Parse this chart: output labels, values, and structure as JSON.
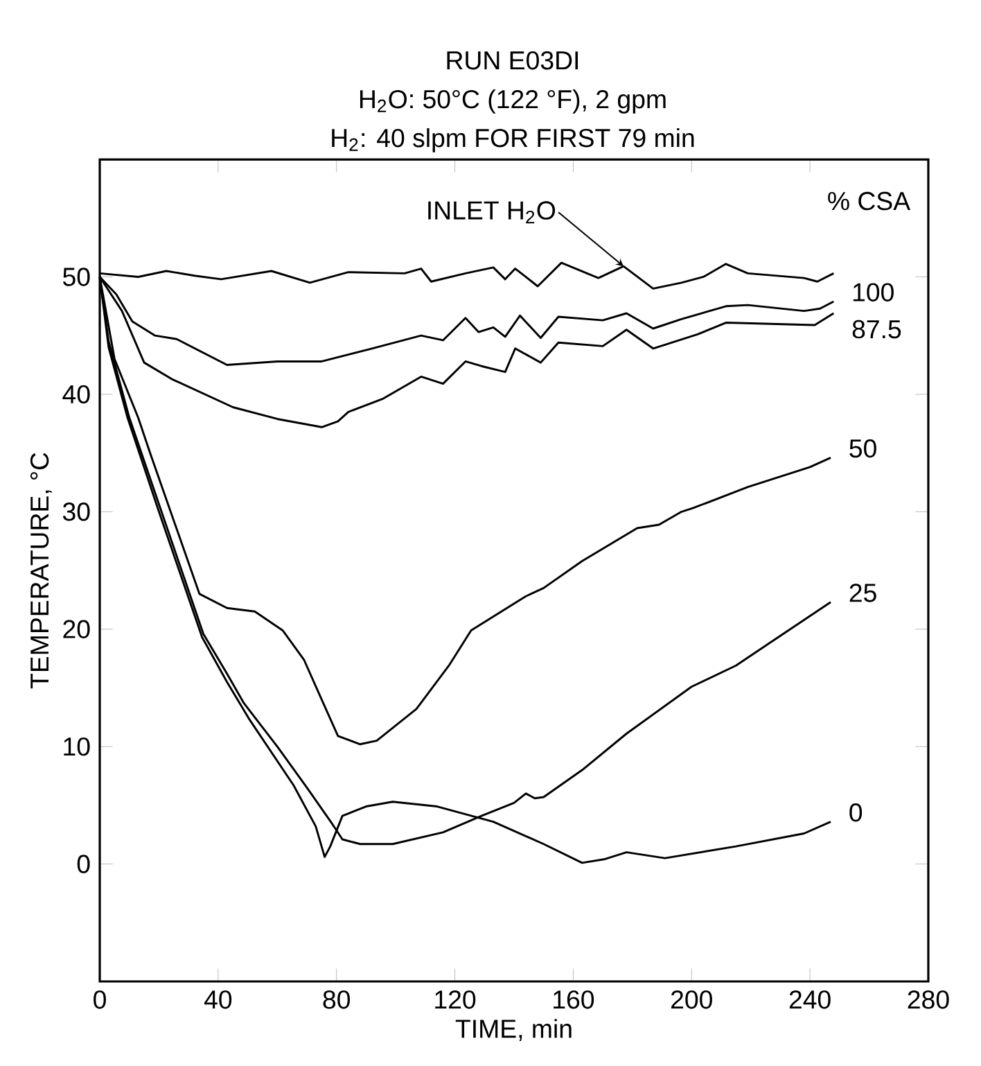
{
  "chart_data": {
    "type": "line",
    "title": "RUN E03DI",
    "subtitle": "H$_{2}$O: 50°C (122 °F), 2 gpm",
    "xlabel": "TIME, min",
    "ylabel": "TEMPERATURE, °C",
    "legend_title": "% CSA",
    "annotations": [
      "H$_{2}$: 40 slpm FOR FIRST 79 min",
      {
        "text": "INLET H$_{2}$O",
        "x": 177,
        "y": 50.9
      }
    ],
    "xlim": [
      0,
      280
    ],
    "ylim": [
      -10,
      60
    ],
    "xticks": [
      0,
      40,
      80,
      120,
      160,
      200,
      240,
      280
    ],
    "yticks": [
      0,
      10,
      20,
      30,
      40,
      50
    ],
    "grid": false,
    "marker": "none",
    "line_style": "solid",
    "series": [
      {
        "color": "#000000",
        "x": [
          0,
          13,
          22.5,
          32,
          41,
          58,
          71,
          84,
          103,
          108.6,
          112,
          123.6,
          133,
          137,
          140.4,
          148,
          156,
          168.5,
          177,
          187,
          196.6,
          204,
          211.6,
          219,
          238,
          242.5,
          248
        ],
        "values": [
          50.3,
          50,
          50.5,
          50.1,
          49.8,
          50.5,
          49.5,
          50.4,
          50.3,
          50.7,
          49.6,
          50.3,
          50.8,
          49.8,
          50.7,
          49.2,
          51.2,
          49.9,
          50.9,
          49,
          49.5,
          50,
          51.1,
          50.3,
          49.9,
          49.6,
          50.3
        ]
      },
      {
        "name": "100",
        "color": "#000000",
        "x": [
          0,
          5.6,
          11,
          18.7,
          26,
          43,
          60,
          75,
          92,
          108.6,
          116,
          123.6,
          128,
          133,
          137,
          142,
          149,
          155,
          170,
          178,
          187,
          196.6,
          211.6,
          219,
          238,
          243.4,
          248
        ],
        "values": [
          50,
          48.5,
          46.2,
          45,
          44.7,
          42.5,
          42.8,
          42.8,
          43.9,
          45,
          44.6,
          46.5,
          45.3,
          45.7,
          44.9,
          46.7,
          44.8,
          46.6,
          46.3,
          46.9,
          45.6,
          46.4,
          47.5,
          47.6,
          47.1,
          47.3,
          47.9
        ]
      },
      {
        "name": "87.5",
        "color": "#000000",
        "x": [
          0,
          7.5,
          15,
          24.3,
          45,
          60,
          75,
          80.5,
          84,
          95.5,
          108.6,
          116,
          123.6,
          129,
          137,
          140.4,
          149,
          155,
          170,
          178,
          187,
          202,
          211.6,
          241.6,
          248
        ],
        "values": [
          50,
          47.1,
          42.7,
          41.3,
          38.9,
          37.9,
          37.2,
          37.7,
          38.5,
          39.6,
          41.5,
          40.9,
          42.8,
          42.4,
          41.9,
          43.9,
          42.7,
          44.4,
          44.1,
          45.5,
          43.9,
          45.1,
          46.1,
          45.9,
          46.9
        ]
      },
      {
        "name": "50",
        "color": "#000000",
        "x": [
          0,
          5,
          13,
          17,
          33.7,
          43,
          52.4,
          61.8,
          69,
          75,
          80.5,
          88,
          93.6,
          107,
          118,
          125.5,
          144,
          150,
          163,
          181.6,
          189,
          196.6,
          200.4,
          219,
          240,
          247
        ],
        "values": [
          50,
          43,
          38,
          35,
          23,
          21.8,
          21.5,
          19.9,
          17.4,
          14,
          10.9,
          10.2,
          10.5,
          13.2,
          16.9,
          19.9,
          22.8,
          23.5,
          25.8,
          28.6,
          28.9,
          30,
          30.3,
          32.1,
          33.8,
          34.6
        ]
      },
      {
        "name": "25",
        "color": "#000000",
        "x": [
          0,
          3,
          10,
          35,
          43,
          48.7,
          60,
          70,
          78.6,
          82,
          88,
          99,
          116,
          129,
          140,
          144,
          147,
          150,
          163,
          178,
          200,
          215,
          228,
          247
        ],
        "values": [
          50,
          44.5,
          38,
          19.6,
          16.2,
          13.7,
          10,
          6.5,
          3.4,
          2.1,
          1.7,
          1.7,
          2.7,
          4.1,
          5.2,
          6,
          5.6,
          5.7,
          8,
          11.1,
          15.1,
          16.9,
          19.1,
          22.3
        ]
      },
      {
        "name": "0",
        "color": "#000000",
        "x": [
          0,
          3,
          9.4,
          20,
          34.6,
          43,
          50.6,
          65.5,
          73,
          76,
          77.9,
          82,
          90,
          99,
          114,
          133,
          150,
          163,
          170.4,
          178,
          191,
          215,
          238,
          247
        ],
        "values": [
          50,
          44,
          38,
          30,
          19.3,
          15.5,
          12.3,
          6.7,
          3.2,
          0.6,
          1.5,
          4.1,
          4.9,
          5.3,
          4.9,
          3.6,
          1.7,
          0.1,
          0.4,
          1,
          0.5,
          1.5,
          2.6,
          3.6
        ]
      }
    ]
  }
}
